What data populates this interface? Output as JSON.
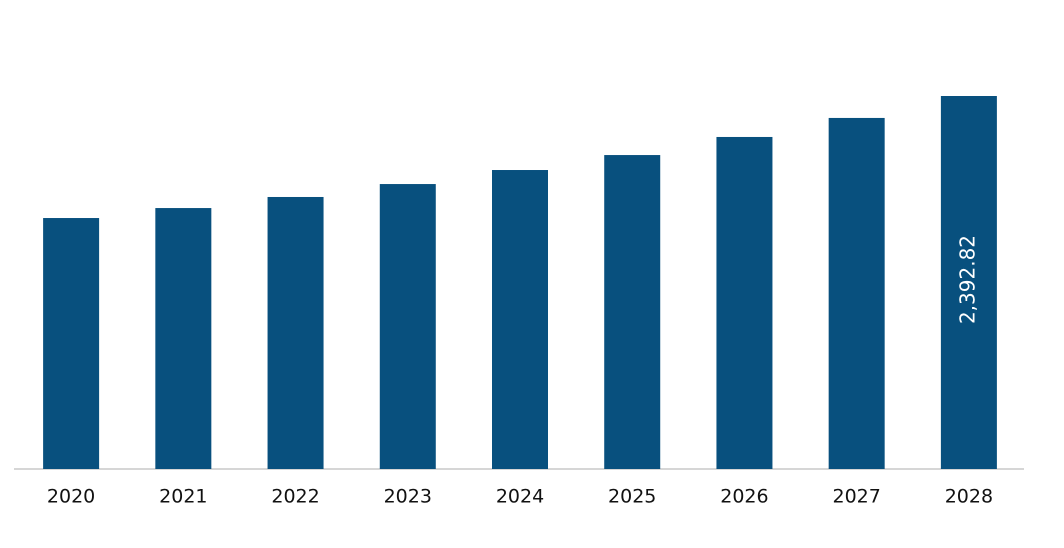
{
  "chart_data": {
    "type": "bar",
    "categories": [
      "2020",
      "2021",
      "2022",
      "2023",
      "2024",
      "2025",
      "2026",
      "2027",
      "2028"
    ],
    "values": [
      1610,
      1674,
      1745,
      1828,
      1918,
      2014,
      2130,
      2252,
      2392.82
    ],
    "value_labels": [
      null,
      null,
      null,
      null,
      null,
      null,
      null,
      null,
      "2,392.82"
    ],
    "color": "#08507e"
  }
}
